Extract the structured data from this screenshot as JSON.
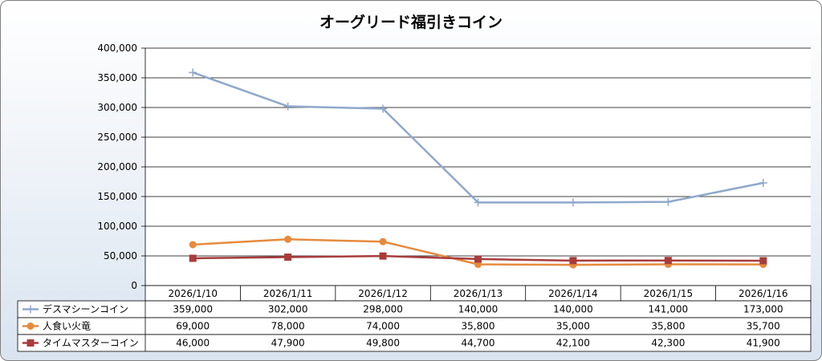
{
  "chart_data": {
    "type": "line",
    "title": "オーグリード福引きコイン",
    "categories": [
      "2026/1/10",
      "2026/1/11",
      "2026/1/12",
      "2026/1/13",
      "2026/1/14",
      "2026/1/15",
      "2026/1/16"
    ],
    "ylim": [
      0,
      400000
    ],
    "yticks": [
      "0",
      "50,000",
      "100,000",
      "150,000",
      "200,000",
      "250,000",
      "300,000",
      "350,000",
      "400,000"
    ],
    "grid": true,
    "legend": "data-table-left",
    "series": [
      {
        "name": "デスマシーンコイン",
        "color": "#8fa8cc",
        "marker": "plus",
        "values": [
          359000,
          302000,
          298000,
          140000,
          140000,
          141000,
          173000
        ],
        "labels": [
          "359,000",
          "302,000",
          "298,000",
          "140,000",
          "140,000",
          "141,000",
          "173,000"
        ]
      },
      {
        "name": "人食い火竜",
        "color": "#e68a3c",
        "marker": "circle",
        "values": [
          69000,
          78000,
          74000,
          35800,
          35000,
          35800,
          35700
        ],
        "labels": [
          "69,000",
          "78,000",
          "74,000",
          "35,800",
          "35,000",
          "35,800",
          "35,700"
        ]
      },
      {
        "name": "タイムマスターコイン",
        "color": "#a83c3c",
        "marker": "square",
        "values": [
          46000,
          47900,
          49800,
          44700,
          42100,
          42300,
          41900
        ],
        "labels": [
          "46,000",
          "47,900",
          "49,800",
          "44,700",
          "42,100",
          "42,300",
          "41,900"
        ]
      }
    ]
  }
}
